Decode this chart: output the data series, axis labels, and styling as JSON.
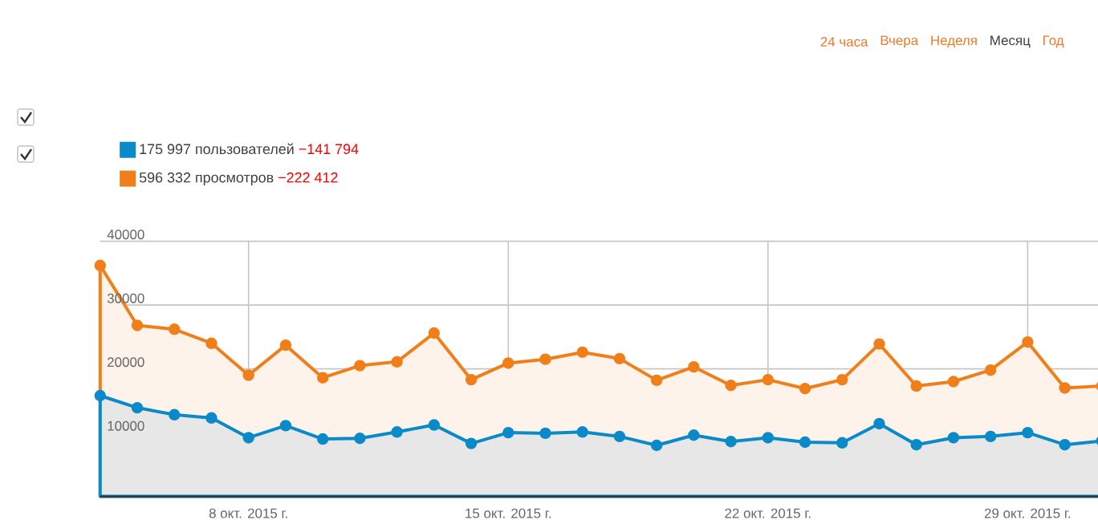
{
  "chart_data": {
    "type": "area",
    "x": [
      "2015-10-04",
      "2015-10-05",
      "2015-10-06",
      "2015-10-07",
      "2015-10-08",
      "2015-10-09",
      "2015-10-10",
      "2015-10-11",
      "2015-10-12",
      "2015-10-13",
      "2015-10-14",
      "2015-10-15",
      "2015-10-16",
      "2015-10-17",
      "2015-10-18",
      "2015-10-19",
      "2015-10-20",
      "2015-10-21",
      "2015-10-22",
      "2015-10-23",
      "2015-10-24",
      "2015-10-25",
      "2015-10-26",
      "2015-10-27",
      "2015-10-28",
      "2015-10-29",
      "2015-10-30",
      "2015-10-31"
    ],
    "series": [
      {
        "name": "175 997 пользователей",
        "color": "#0b8ac9",
        "values": [
          15800,
          13900,
          12800,
          12300,
          9200,
          11100,
          9000,
          9100,
          10100,
          11200,
          8300,
          10000,
          9900,
          10100,
          9400,
          8000,
          9600,
          8600,
          9200,
          8500,
          8400,
          11400,
          8100,
          9200,
          9400,
          10000,
          8100,
          8700
        ]
      },
      {
        "name": "596 332 просмотров",
        "color": "#f07f19",
        "values": [
          36200,
          26800,
          26200,
          24000,
          19000,
          23700,
          18600,
          20500,
          21100,
          25600,
          18300,
          20900,
          21500,
          22600,
          21600,
          18200,
          20300,
          17400,
          18300,
          16900,
          18300,
          23900,
          17300,
          18000,
          19800,
          24200,
          17000,
          17300
        ]
      }
    ],
    "annotations": [
      "−141 794",
      "−222 412",
      "24 часа",
      "Вчера",
      "Неделя",
      "Месяц",
      "Год"
    ],
    "xlim": [
      "2015-10-04",
      "2015-10-31"
    ],
    "xticks": [
      {
        "value": "2015-10-08",
        "label": "8 окт. 2015 г."
      },
      {
        "value": "2015-10-15",
        "label": "15 окт. 2015 г."
      },
      {
        "value": "2015-10-22",
        "label": "22 окт. 2015 г."
      },
      {
        "value": "2015-10-29",
        "label": "29 окт. 2015 г."
      }
    ],
    "ylim": [
      0,
      40000
    ],
    "yticks": [
      10000,
      20000,
      30000,
      40000
    ],
    "grid": true,
    "legend": "top left",
    "marker": "circle"
  }
}
